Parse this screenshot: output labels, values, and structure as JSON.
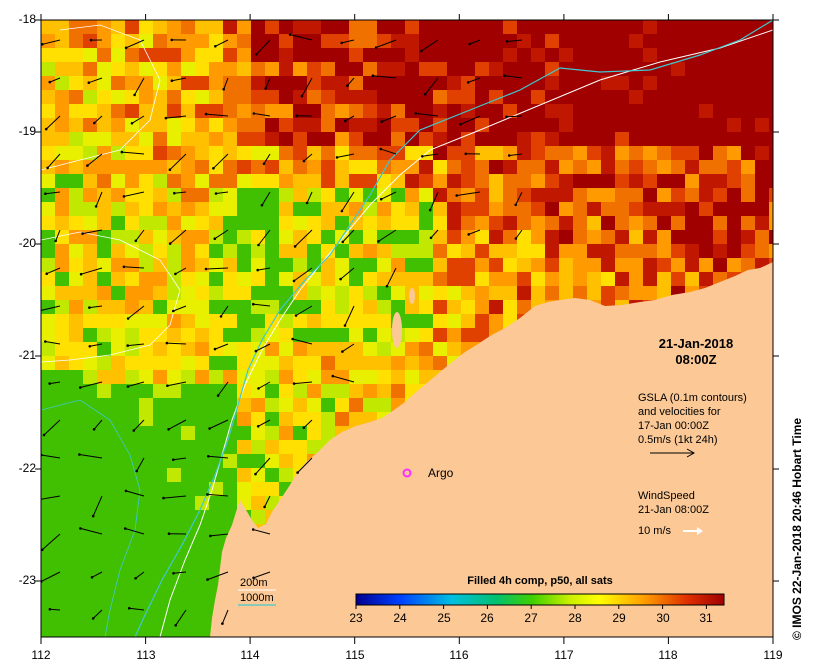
{
  "map": {
    "x_ticks": [
      "112",
      "113",
      "114",
      "115",
      "116",
      "117",
      "118",
      "119"
    ],
    "y_ticks": [
      "-18",
      "-19",
      "-20",
      "-21",
      "-22",
      "-23"
    ],
    "date": {
      "line1": "21-Jan-2018",
      "line2": "08:00Z"
    },
    "gsla": {
      "line1": "GSLA (0.1m contours)",
      "line2": "and velocities for",
      "line3": "17-Jan 00:00Z",
      "line4": "0.5m/s (1kt 24h)"
    },
    "wind": {
      "line1": "WindSpeed",
      "line2": "21-Jan 08:00Z",
      "line3": "10 m/s"
    },
    "argo_label": "Argo",
    "bathymetry": {
      "contour_200": "200m",
      "contour_1000": "1000m"
    },
    "colorbar": {
      "title": "Filled 4h comp, p50, all sats",
      "ticks": [
        "23",
        "24",
        "25",
        "26",
        "27",
        "28",
        "29",
        "30",
        "31"
      ],
      "min": 23,
      "max": 31.4
    },
    "credit": "© IMOS 22-Jan-2018 20:46 Hobart Time",
    "colors": {
      "land": "#fbc896",
      "contour_200": "#ffffff",
      "contour_1000": "#40c8d0",
      "argo": "#ff30ff"
    }
  }
}
